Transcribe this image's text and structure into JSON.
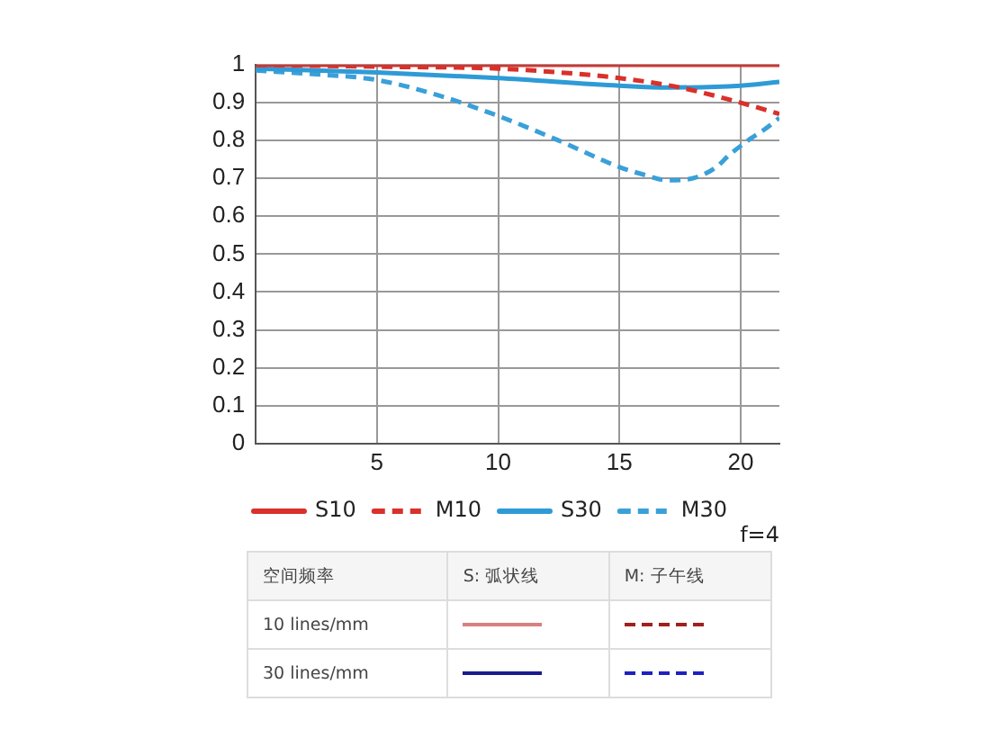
{
  "chart_data": {
    "type": "line",
    "xlim": [
      0,
      21.6
    ],
    "xticks": [
      5,
      10,
      15,
      20
    ],
    "ylim": [
      0,
      1
    ],
    "yticks": [
      0,
      0.1,
      0.2,
      0.3,
      0.4,
      0.5,
      0.6,
      0.7,
      0.8,
      0.9,
      1
    ],
    "grid": true,
    "legend": "bottom",
    "marker": "none",
    "series": [
      {
        "name": "S10",
        "color": "#d9312b",
        "line_style": "solid",
        "x": [
          0,
          5,
          10,
          15,
          20,
          21.6
        ],
        "values": [
          1,
          1,
          1,
          1,
          1,
          1
        ]
      },
      {
        "name": "M10",
        "color": "#d9312b",
        "line_style": "dashed",
        "x": [
          0,
          5,
          10,
          12.5,
          15,
          17.5,
          20,
          21.6
        ],
        "values": [
          1,
          0.995,
          0.99,
          0.98,
          0.965,
          0.94,
          0.9,
          0.87
        ]
      },
      {
        "name": "S30",
        "color": "#2e9bd6",
        "line_style": "solid",
        "x": [
          0,
          5,
          10,
          15,
          17,
          20,
          21.6
        ],
        "values": [
          0.99,
          0.98,
          0.965,
          0.945,
          0.94,
          0.945,
          0.955
        ]
      },
      {
        "name": "M30",
        "color": "#3aa0d8",
        "line_style": "dashed",
        "x": [
          0,
          2.5,
          5,
          7.5,
          10,
          12.5,
          15,
          16,
          17,
          18,
          19,
          19.5,
          20.3,
          21,
          21.6
        ],
        "values": [
          0.985,
          0.975,
          0.96,
          0.92,
          0.865,
          0.8,
          0.73,
          0.71,
          0.695,
          0.7,
          0.73,
          0.76,
          0.8,
          0.83,
          0.86
        ]
      }
    ],
    "annotations": [
      "f=4",
      "空间频率",
      "S: 弧状线",
      "M: 子午线",
      "10 lines/mm",
      "30 lines/mm"
    ]
  }
}
